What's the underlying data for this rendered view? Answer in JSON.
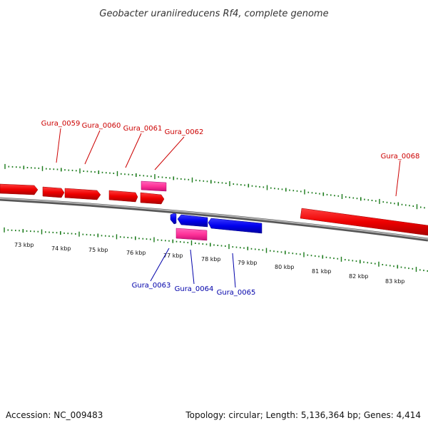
{
  "title": "Geobacter uraniireducens Rf4, complete genome",
  "footer": {
    "accession": "Accession: NC_009483",
    "summary": "Topology: circular; Length: 5,136,364 bp; Genes: 4,414"
  },
  "colors": {
    "forward_gene": "#ff0000",
    "forward_label": "#cc0000",
    "reverse_gene": "#0000ff",
    "reverse_label": "#0000aa",
    "rna_feature": "#ff3399",
    "tick": "#1a7a1a",
    "backbone": "#808080"
  },
  "ticks": {
    "labels": [
      "73 kbp",
      "74 kbp",
      "75 kbp",
      "76 kbp",
      "77 kbp",
      "78 kbp",
      "79 kbp",
      "80 kbp",
      "81 kbp",
      "82 kbp",
      "83 kbp"
    ]
  },
  "features": {
    "forward": [
      {
        "name": "",
        "labeled": false
      },
      {
        "name": "",
        "labeled": false
      },
      {
        "name": "Gura_0059",
        "labeled": true
      },
      {
        "name": "Gura_0060",
        "labeled": true
      },
      {
        "name": "Gura_0061",
        "labeled": true
      },
      {
        "name": "Gura_0068",
        "labeled": true
      }
    ],
    "reverse": [
      {
        "name": "",
        "labeled": false
      },
      {
        "name": "Gura_0063",
        "labeled": true
      },
      {
        "name": "Gura_0065",
        "labeled": true
      }
    ],
    "rna": [
      {
        "name": "Gura_0062",
        "labeled": true
      },
      {
        "name": "Gura_0064",
        "labeled": true
      }
    ]
  }
}
